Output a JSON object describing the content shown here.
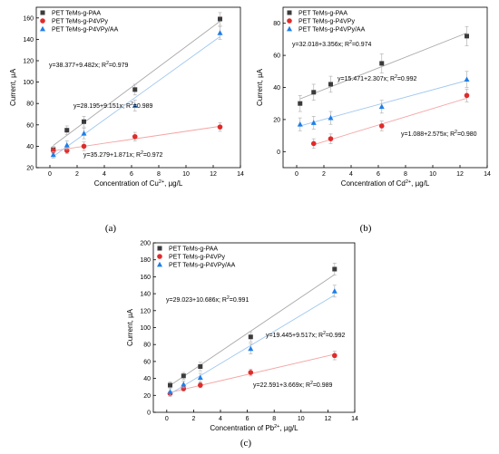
{
  "chart_data": [
    {
      "type": "scatter",
      "panel_label": "(a)",
      "xlabel": "Concentration of Cu",
      "xlabel_sup": "2+",
      "xlabel_unit": ", µg/L",
      "ylabel": "Current, µA",
      "xlim": [
        -1,
        14
      ],
      "ylim": [
        20,
        170
      ],
      "xticks": [
        0,
        2,
        4,
        6,
        8,
        10,
        12,
        14
      ],
      "yticks": [
        20,
        40,
        60,
        80,
        100,
        120,
        140,
        160
      ],
      "legend_position": "top-left",
      "series": [
        {
          "name": "PET TeMs-g-PAA",
          "marker": "square",
          "color": "#3b3b3b",
          "line_color": "#a9a9a9",
          "x": [
            0.25,
            1.25,
            2.5,
            6.25,
            12.5
          ],
          "y": [
            37,
            55,
            63,
            93,
            159
          ],
          "err": [
            3,
            4,
            5,
            5,
            6
          ],
          "fit": {
            "a": 38.377,
            "b": 9.482
          },
          "equation": "y=38.377+9.482x; R",
          "r2": "=0.979"
        },
        {
          "name": "PET TeMs-g-P4VPy",
          "marker": "circle",
          "color": "#e02b2b",
          "line_color": "#f5a3a3",
          "x": [
            0.25,
            1.25,
            2.5,
            6.25,
            12.5
          ],
          "y": [
            36,
            36,
            40,
            49,
            58
          ],
          "err": [
            3,
            3,
            4,
            4,
            4
          ],
          "fit": {
            "a": 35.279,
            "b": 1.871
          },
          "equation": "y=35.279+1.871x; R",
          "r2": "=0.972"
        },
        {
          "name": "PET TeMs-g-P4VPy/AA",
          "marker": "triangle",
          "color": "#1f7ee8",
          "line_color": "#9fc6f0",
          "x": [
            0.25,
            1.25,
            2.5,
            6.25,
            12.5
          ],
          "y": [
            32,
            41,
            52,
            78,
            146
          ],
          "err": [
            3,
            4,
            5,
            5,
            6
          ],
          "fit": {
            "a": 28.195,
            "b": 9.151
          },
          "equation": "y=28.195+9.151x; R",
          "r2": "=0.989"
        }
      ]
    },
    {
      "type": "scatter",
      "panel_label": "(b)",
      "xlabel": "Concentration of Cd",
      "xlabel_sup": "2+",
      "xlabel_unit": ", µg/L",
      "ylabel": "Current, µA",
      "xlim": [
        -1,
        14
      ],
      "ylim": [
        -10,
        90
      ],
      "xticks": [
        0,
        2,
        4,
        6,
        8,
        10,
        12,
        14
      ],
      "yticks": [
        0,
        20,
        40,
        60,
        80
      ],
      "legend_position": "top-left",
      "series": [
        {
          "name": "PET TeMs-g-PAA",
          "marker": "square",
          "color": "#3b3b3b",
          "line_color": "#a9a9a9",
          "x": [
            0.25,
            1.25,
            2.5,
            6.25,
            12.5
          ],
          "y": [
            30,
            37,
            42,
            55,
            72
          ],
          "err": [
            5,
            5,
            5,
            6,
            6
          ],
          "fit": {
            "a": 32.018,
            "b": 3.356
          },
          "equation": "y=32.018+3.356x; R",
          "r2": "=0.974"
        },
        {
          "name": "PET TeMs-g-P4VPy",
          "marker": "circle",
          "color": "#e02b2b",
          "line_color": "#f5a3a3",
          "x": [
            1.25,
            2.5,
            6.25,
            12.5
          ],
          "y": [
            5,
            8,
            16,
            35
          ],
          "err": [
            3,
            3,
            3,
            4
          ],
          "fit": {
            "a": 1.088,
            "b": 2.575
          },
          "equation": "y=1.088+2.575x; R",
          "r2": "=0.980"
        },
        {
          "name": "PET TeMs-g-P4VPy/AA",
          "marker": "triangle",
          "color": "#1f7ee8",
          "line_color": "#9fc6f0",
          "x": [
            0.25,
            1.25,
            2.5,
            6.25,
            12.5
          ],
          "y": [
            17,
            18,
            21,
            28,
            45
          ],
          "err": [
            4,
            4,
            4,
            4,
            5
          ],
          "fit": {
            "a": 15.471,
            "b": 2.307
          },
          "equation": "y=15.471+2.307x; R",
          "r2": "=0.992"
        }
      ]
    },
    {
      "type": "scatter",
      "panel_label": "(c)",
      "xlabel": "Concentration of Pb",
      "xlabel_sup": "2+",
      "xlabel_unit": ", µg/L",
      "ylabel": "Current, µA",
      "xlim": [
        -1,
        14
      ],
      "ylim": [
        0,
        200
      ],
      "xticks": [
        0,
        2,
        4,
        6,
        8,
        10,
        12,
        14
      ],
      "yticks": [
        0,
        20,
        40,
        60,
        80,
        100,
        120,
        140,
        160,
        180,
        200
      ],
      "legend_position": "top-left",
      "series": [
        {
          "name": "PET TeMs-g-PAA",
          "marker": "square",
          "color": "#3b3b3b",
          "line_color": "#a9a9a9",
          "x": [
            0.25,
            1.25,
            2.5,
            6.25,
            12.5
          ],
          "y": [
            32,
            43,
            54,
            89,
            169
          ],
          "err": [
            4,
            4,
            5,
            6,
            7
          ],
          "fit": {
            "a": 29.023,
            "b": 10.686
          },
          "equation": "y=29.023+10.686x; R",
          "r2": "=0.991"
        },
        {
          "name": "PET TeMs-g-P4VPy",
          "marker": "circle",
          "color": "#e02b2b",
          "line_color": "#f5a3a3",
          "x": [
            0.25,
            1.25,
            2.5,
            6.25,
            12.5
          ],
          "y": [
            22,
            28,
            32,
            47,
            67
          ],
          "err": [
            3,
            3,
            3,
            4,
            5
          ],
          "fit": {
            "a": 22.591,
            "b": 3.669
          },
          "equation": "y=22.591+3.669x; R",
          "r2": "=0.989"
        },
        {
          "name": "PET TeMs-g-P4VPy/AA",
          "marker": "triangle",
          "color": "#1f7ee8",
          "line_color": "#9fc6f0",
          "x": [
            0.25,
            1.25,
            2.5,
            6.25,
            12.5
          ],
          "y": [
            24,
            33,
            41,
            75,
            143
          ],
          "err": [
            4,
            4,
            5,
            6,
            7
          ],
          "fit": {
            "a": 19.445,
            "b": 9.517
          },
          "equation": "y=19.445+9.517x; R",
          "r2": "=0.992"
        }
      ]
    }
  ]
}
